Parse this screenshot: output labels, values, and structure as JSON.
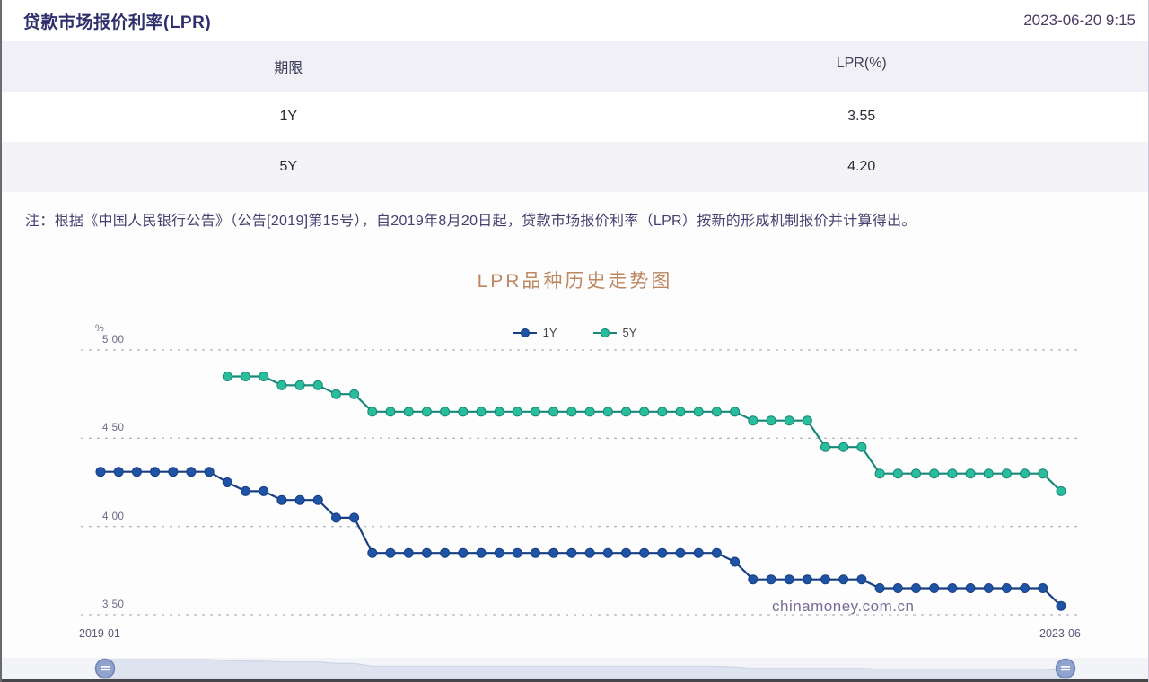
{
  "header": {
    "title": "贷款市场报价利率(LPR)",
    "timestamp": "2023-06-20 9:15"
  },
  "table": {
    "columns": [
      "期限",
      "LPR(%)"
    ],
    "rows": [
      {
        "term": "1Y",
        "rate": "3.55"
      },
      {
        "term": "5Y",
        "rate": "4.20"
      }
    ]
  },
  "note": "注：根据《中国人民银行公告》（公告[2019]第15号），自2019年8月20日起，贷款市场报价利率（LPR）按新的形成机制报价并计算得出。",
  "chart": {
    "title": "LPR品种历史走势图",
    "watermark": "chinamoney.com.cn",
    "y_unit": "%",
    "ytick_labels": [
      "5.00",
      "4.50",
      "4.00",
      "3.50"
    ],
    "x_first_label": "2019-01",
    "x_last_label": "2023-06"
  },
  "chart_data": {
    "type": "line",
    "title": "LPR品种历史走势图",
    "xlabel": "",
    "ylabel": "%",
    "ylim": [
      3.4,
      5.1
    ],
    "yticks": [
      5.0,
      4.5,
      4.0,
      3.5
    ],
    "grid": "horizontal-dashed",
    "legend_position": "top-center",
    "x": [
      "2019-01",
      "2019-02",
      "2019-03",
      "2019-04",
      "2019-05",
      "2019-06",
      "2019-07",
      "2019-08",
      "2019-09",
      "2019-10",
      "2019-11",
      "2019-12",
      "2020-01",
      "2020-02",
      "2020-03",
      "2020-04",
      "2020-05",
      "2020-06",
      "2020-07",
      "2020-08",
      "2020-09",
      "2020-10",
      "2020-11",
      "2020-12",
      "2021-01",
      "2021-02",
      "2021-03",
      "2021-04",
      "2021-05",
      "2021-06",
      "2021-07",
      "2021-08",
      "2021-09",
      "2021-10",
      "2021-11",
      "2021-12",
      "2022-01",
      "2022-02",
      "2022-03",
      "2022-04",
      "2022-05",
      "2022-06",
      "2022-07",
      "2022-08",
      "2022-09",
      "2022-10",
      "2022-11",
      "2022-12",
      "2023-01",
      "2023-02",
      "2023-03",
      "2023-04",
      "2023-05",
      "2023-06"
    ],
    "series": [
      {
        "name": "1Y",
        "color": "#1e53a6",
        "line_color": "#183f80",
        "values": [
          4.31,
          4.31,
          4.31,
          4.31,
          4.31,
          4.31,
          4.31,
          4.25,
          4.2,
          4.2,
          4.15,
          4.15,
          4.15,
          4.05,
          4.05,
          3.85,
          3.85,
          3.85,
          3.85,
          3.85,
          3.85,
          3.85,
          3.85,
          3.85,
          3.85,
          3.85,
          3.85,
          3.85,
          3.85,
          3.85,
          3.85,
          3.85,
          3.85,
          3.85,
          3.85,
          3.8,
          3.7,
          3.7,
          3.7,
          3.7,
          3.7,
          3.7,
          3.7,
          3.65,
          3.65,
          3.65,
          3.65,
          3.65,
          3.65,
          3.65,
          3.65,
          3.65,
          3.65,
          3.55
        ]
      },
      {
        "name": "5Y",
        "color": "#29bd9c",
        "line_color": "#178877",
        "values": [
          null,
          null,
          null,
          null,
          null,
          null,
          null,
          4.85,
          4.85,
          4.85,
          4.8,
          4.8,
          4.8,
          4.75,
          4.75,
          4.65,
          4.65,
          4.65,
          4.65,
          4.65,
          4.65,
          4.65,
          4.65,
          4.65,
          4.65,
          4.65,
          4.65,
          4.65,
          4.65,
          4.65,
          4.65,
          4.65,
          4.65,
          4.65,
          4.65,
          4.65,
          4.6,
          4.6,
          4.6,
          4.6,
          4.45,
          4.45,
          4.45,
          4.3,
          4.3,
          4.3,
          4.3,
          4.3,
          4.3,
          4.3,
          4.3,
          4.3,
          4.3,
          4.2
        ]
      }
    ]
  },
  "slider": {
    "range_start_label": "2019-01",
    "range_end_label": "2023-06",
    "colors": {
      "track": "#f2f4f8",
      "fill": "#dde3ef",
      "outline": "#c9d2e4",
      "handle_fill": "#8fa3ce",
      "handle_stroke": "#7084b4",
      "bottom_bar": "#474749"
    }
  }
}
